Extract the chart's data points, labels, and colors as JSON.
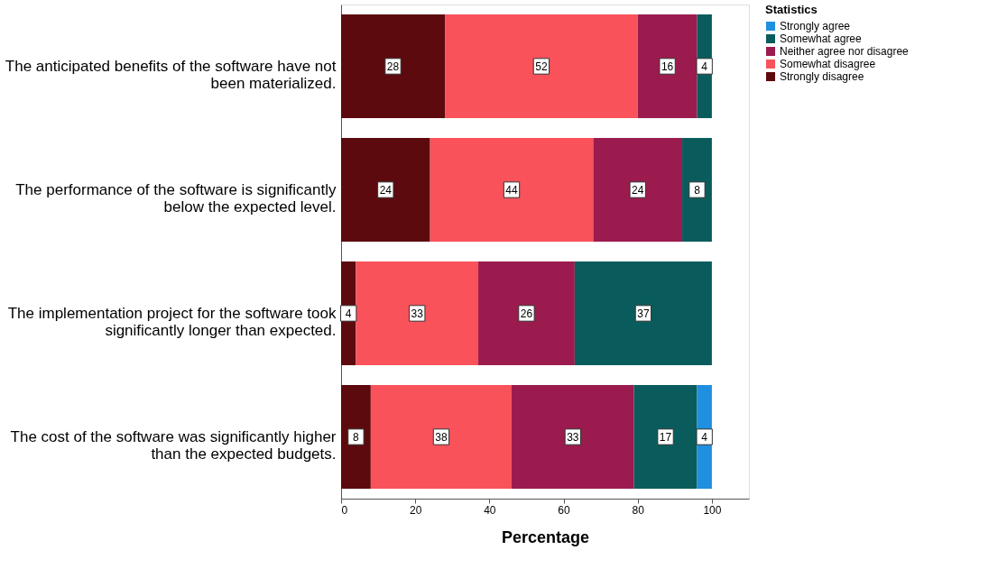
{
  "chart_data": {
    "type": "bar",
    "orientation": "horizontal",
    "stacked": true,
    "xlabel": "Percentage",
    "legend_title": "Statistics",
    "legend": "top right",
    "data_labels": true,
    "grid": false,
    "categories": [
      "The anticipated benefits of the software have not been materialized.",
      "The performance of the software is significantly below the expected level.",
      "The implementation project for the software took significantly longer than expected.",
      "The cost of the software was significantly higher than the expected budgets."
    ],
    "xlim": [
      0,
      110
    ],
    "xticks": [
      0,
      20,
      40,
      60,
      80,
      100
    ],
    "series": [
      {
        "name": "Strongly disagree",
        "color": "#5c0a0e",
        "values": [
          28,
          24,
          4,
          8
        ]
      },
      {
        "name": "Somewhat disagree",
        "color": "#f9525a",
        "values": [
          52,
          44,
          33,
          38
        ]
      },
      {
        "name": "Neither agree nor disagree",
        "color": "#9b1b4e",
        "values": [
          16,
          24,
          26,
          33
        ]
      },
      {
        "name": "Somewhat agree",
        "color": "#0a5c5c",
        "values": [
          4,
          8,
          37,
          17
        ]
      },
      {
        "name": "Strongly agree",
        "color": "#1f8fe0",
        "values": [
          null,
          null,
          null,
          4
        ]
      }
    ]
  }
}
